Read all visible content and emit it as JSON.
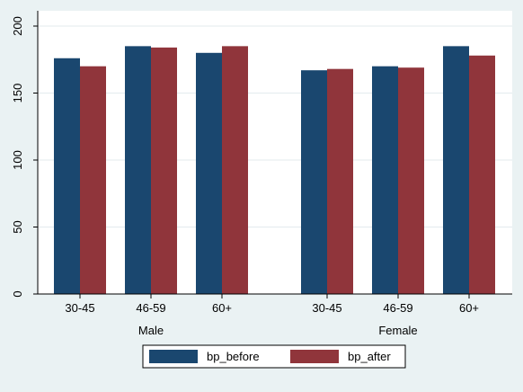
{
  "chart_data": {
    "type": "bar",
    "groups": [
      {
        "name": "Male",
        "categories": [
          "30-45",
          "46-59",
          "60+"
        ]
      },
      {
        "name": "Female",
        "categories": [
          "30-45",
          "46-59",
          "60+"
        ]
      }
    ],
    "series": [
      {
        "name": "bp_before",
        "color": "#1a476f",
        "values": [
          176,
          185,
          180,
          167,
          170,
          185
        ]
      },
      {
        "name": "bp_after",
        "color": "#90353b",
        "values": [
          170,
          184,
          185,
          168,
          169,
          178
        ]
      }
    ],
    "ylim": [
      0,
      200
    ],
    "yticks": [
      0,
      50,
      100,
      150,
      200
    ],
    "grid": true,
    "legend_position": "bottom",
    "title": "",
    "xlabel": "",
    "ylabel": ""
  }
}
